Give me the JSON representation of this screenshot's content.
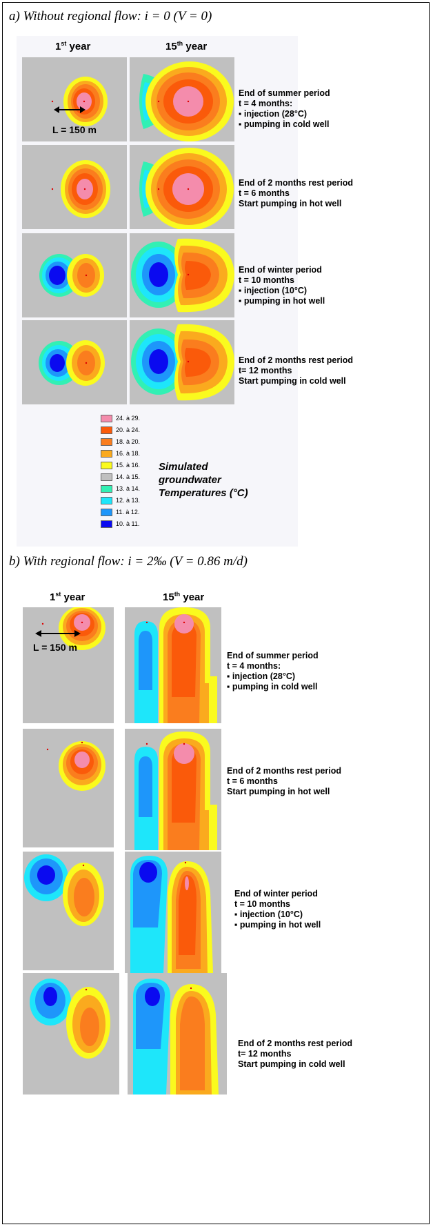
{
  "section_a": {
    "title": "a) Without regional flow: i = 0 (V = 0)",
    "col1": "1",
    "col1_sup": "st",
    "col1_suffix": " year",
    "col2": "15",
    "col2_sup": "th",
    "col2_suffix": " year",
    "length_label": "L = 150 m",
    "rows": [
      {
        "lines": [
          "End of summer period",
          "t = 4 months:",
          "▪ injection (28°C)",
          "▪ pumping in cold well"
        ]
      },
      {
        "lines": [
          "End of 2 months rest period",
          "t = 6 months",
          "Start pumping in hot well"
        ]
      },
      {
        "lines": [
          "End of winter period",
          "t = 10 months",
          "▪ injection (10°C)",
          "▪ pumping in hot well"
        ]
      },
      {
        "lines": [
          "End of 2 months rest period",
          "t= 12 months",
          "Start pumping in cold well"
        ]
      }
    ]
  },
  "legend": {
    "title_lines": [
      "Simulated",
      "groundwater",
      "Temperatures (°C)"
    ],
    "items": [
      {
        "label": "24. à 29.",
        "color": "#f48cac"
      },
      {
        "label": "20. à 24.",
        "color": "#fa5a0a"
      },
      {
        "label": "18. à 20.",
        "color": "#fa7d1e"
      },
      {
        "label": "16. à 18.",
        "color": "#faaa1e"
      },
      {
        "label": "15. à 16.",
        "color": "#fafa1e"
      },
      {
        "label": "14. à 15.",
        "color": "#c0c0c0"
      },
      {
        "label": "13. à 14.",
        "color": "#32f0b4"
      },
      {
        "label": "12. à 13.",
        "color": "#1ee6fa"
      },
      {
        "label": "11. à 12.",
        "color": "#1e96fa"
      },
      {
        "label": "10. à 11.",
        "color": "#0a0af0"
      }
    ]
  },
  "section_b": {
    "title": "b) With regional flow: i = 2‰ (V = 0.86 m/d)",
    "col1": "1",
    "col1_sup": "st",
    "col1_suffix": " year",
    "col2": "15",
    "col2_sup": "th",
    "col2_suffix": " year",
    "length_label": "L = 150 m",
    "rows": [
      {
        "lines": [
          "End of summer period",
          "t = 4 months:",
          "▪ injection (28°C)",
          "▪ pumping in cold well"
        ]
      },
      {
        "lines": [
          "End of 2 months rest period",
          "t = 6 months",
          "Start pumping in hot well"
        ]
      },
      {
        "lines": [
          "End of winter period",
          "t = 10 months",
          "▪ injection (10°C)",
          "▪ pumping in hot well"
        ]
      },
      {
        "lines": [
          "End of 2 months rest period",
          "t= 12 months",
          "Start pumping in cold well"
        ]
      }
    ]
  }
}
